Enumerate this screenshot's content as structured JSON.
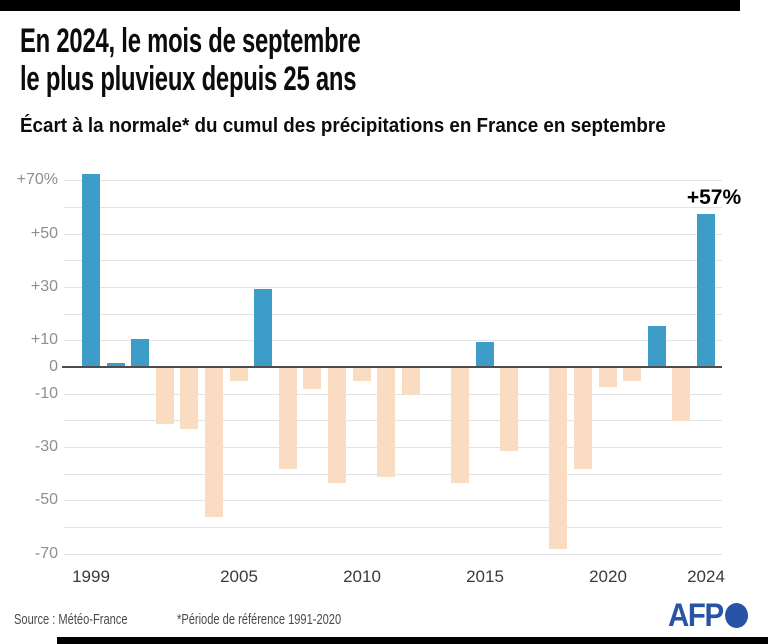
{
  "header": {
    "title_line1": "En 2024, le mois de septembre",
    "title_line2": "le plus pluvieux depuis 25 ans",
    "subtitle": "Écart à la normale* du cumul des précipitations en France en septembre"
  },
  "chart_data": {
    "type": "bar",
    "title": "En 2024, le mois de septembre le plus pluvieux depuis 25 ans",
    "subtitle": "Écart à la normale du cumul des précipitations en France en septembre",
    "unit": "%",
    "categories": [
      1999,
      2000,
      2001,
      2002,
      2003,
      2004,
      2005,
      2006,
      2007,
      2008,
      2009,
      2010,
      2011,
      2012,
      2013,
      2014,
      2015,
      2016,
      2017,
      2018,
      2019,
      2020,
      2021,
      2022,
      2023,
      2024
    ],
    "values": [
      72,
      1,
      10,
      -21,
      -23,
      -56,
      -5,
      29,
      -38,
      -8,
      -43,
      -5,
      -41,
      -10,
      0,
      -43,
      9,
      -31,
      0,
      -68,
      -38,
      -7,
      -5,
      15,
      -20,
      57
    ],
    "y_ticks": [
      {
        "value": 70,
        "label": "+70%"
      },
      {
        "value": 50,
        "label": "+50"
      },
      {
        "value": 30,
        "label": "+30"
      },
      {
        "value": 10,
        "label": "+10"
      },
      {
        "value": 0,
        "label": "0"
      },
      {
        "value": -10,
        "label": "-10"
      },
      {
        "value": -30,
        "label": "-30"
      },
      {
        "value": -50,
        "label": "-50"
      },
      {
        "value": -70,
        "label": "-70"
      }
    ],
    "x_tick_years": [
      1999,
      2005,
      2010,
      2015,
      2020,
      2024
    ],
    "ylim": [
      -75,
      75
    ],
    "grid": true,
    "legend": "none",
    "annotation": {
      "text": "+57%",
      "year": 2024
    },
    "positive_color": "#3e9dc8",
    "negative_color": "#fadcc2"
  },
  "footer": {
    "source": "Source : Météo-France",
    "note": "*Période de référence 1991-2020",
    "logo_text": "AFP"
  }
}
